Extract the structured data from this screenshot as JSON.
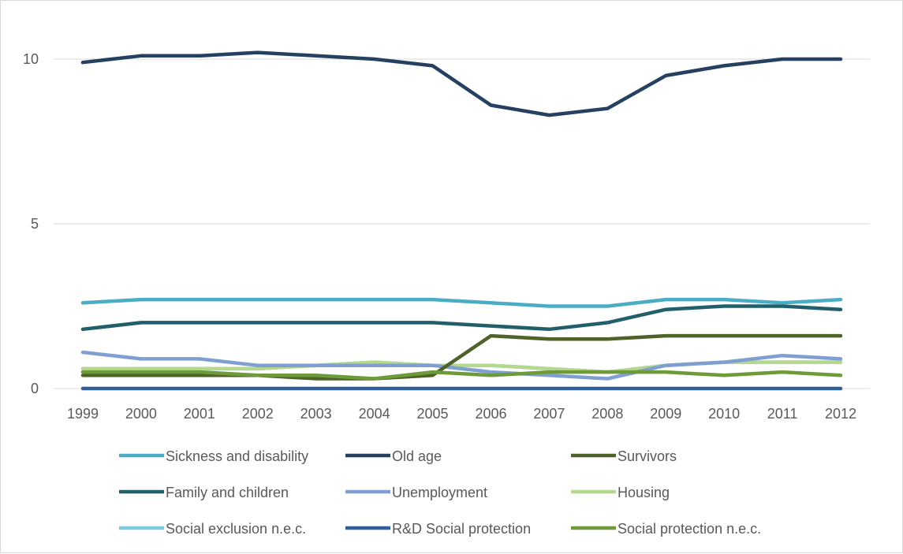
{
  "chart_data": {
    "type": "line",
    "title": "",
    "xlabel": "",
    "ylabel": "",
    "x": [
      "1999",
      "2000",
      "2001",
      "2002",
      "2003",
      "2004",
      "2005",
      "2006",
      "2007",
      "2008",
      "2009",
      "2010",
      "2011",
      "2012"
    ],
    "ylim": [
      0,
      10
    ],
    "yticks": [
      0,
      5,
      10
    ],
    "grid": true,
    "legend_position": "bottom",
    "series": [
      {
        "name": "Sickness and disability",
        "color": "#4bacc6",
        "values": [
          2.6,
          2.7,
          2.7,
          2.7,
          2.7,
          2.7,
          2.7,
          2.6,
          2.5,
          2.5,
          2.7,
          2.7,
          2.6,
          2.7
        ]
      },
      {
        "name": "Old age",
        "color": "#254061",
        "values": [
          9.9,
          10.1,
          10.1,
          10.2,
          10.1,
          10.0,
          9.8,
          8.6,
          8.3,
          8.5,
          9.5,
          9.8,
          10.0,
          10.0
        ]
      },
      {
        "name": "Survivors",
        "color": "#4f6228",
        "values": [
          0.4,
          0.4,
          0.4,
          0.4,
          0.3,
          0.3,
          0.4,
          1.6,
          1.5,
          1.5,
          1.6,
          1.6,
          1.6,
          1.6
        ]
      },
      {
        "name": "Family and children",
        "color": "#215f6b",
        "values": [
          1.8,
          2.0,
          2.0,
          2.0,
          2.0,
          2.0,
          2.0,
          1.9,
          1.8,
          2.0,
          2.4,
          2.5,
          2.5,
          2.4
        ]
      },
      {
        "name": "Unemployment",
        "color": "#7f9fd3",
        "values": [
          1.1,
          0.9,
          0.9,
          0.7,
          0.7,
          0.7,
          0.7,
          0.5,
          0.4,
          0.3,
          0.7,
          0.8,
          1.0,
          0.9
        ]
      },
      {
        "name": "Housing",
        "color": "#b3d88e",
        "values": [
          0.6,
          0.6,
          0.6,
          0.6,
          0.7,
          0.8,
          0.7,
          0.7,
          0.6,
          0.5,
          0.7,
          0.8,
          0.8,
          0.8
        ]
      },
      {
        "name": "Social exclusion n.e.c.",
        "color": "#7dc8dc",
        "values": [
          0.6,
          0.6,
          0.6,
          0.6,
          0.7,
          0.8,
          0.7,
          0.7,
          0.6,
          0.5,
          0.7,
          0.8,
          0.8,
          0.8
        ]
      },
      {
        "name": "R&D Social protection",
        "color": "#2f5f99",
        "values": [
          0,
          0,
          0,
          0,
          0,
          0,
          0,
          0,
          0,
          0,
          0,
          0,
          0,
          0
        ]
      },
      {
        "name": "Social protection n.e.c.",
        "color": "#6e9a3a",
        "values": [
          0.5,
          0.5,
          0.5,
          0.4,
          0.4,
          0.3,
          0.5,
          0.4,
          0.5,
          0.5,
          0.5,
          0.4,
          0.5,
          0.4
        ]
      }
    ]
  }
}
